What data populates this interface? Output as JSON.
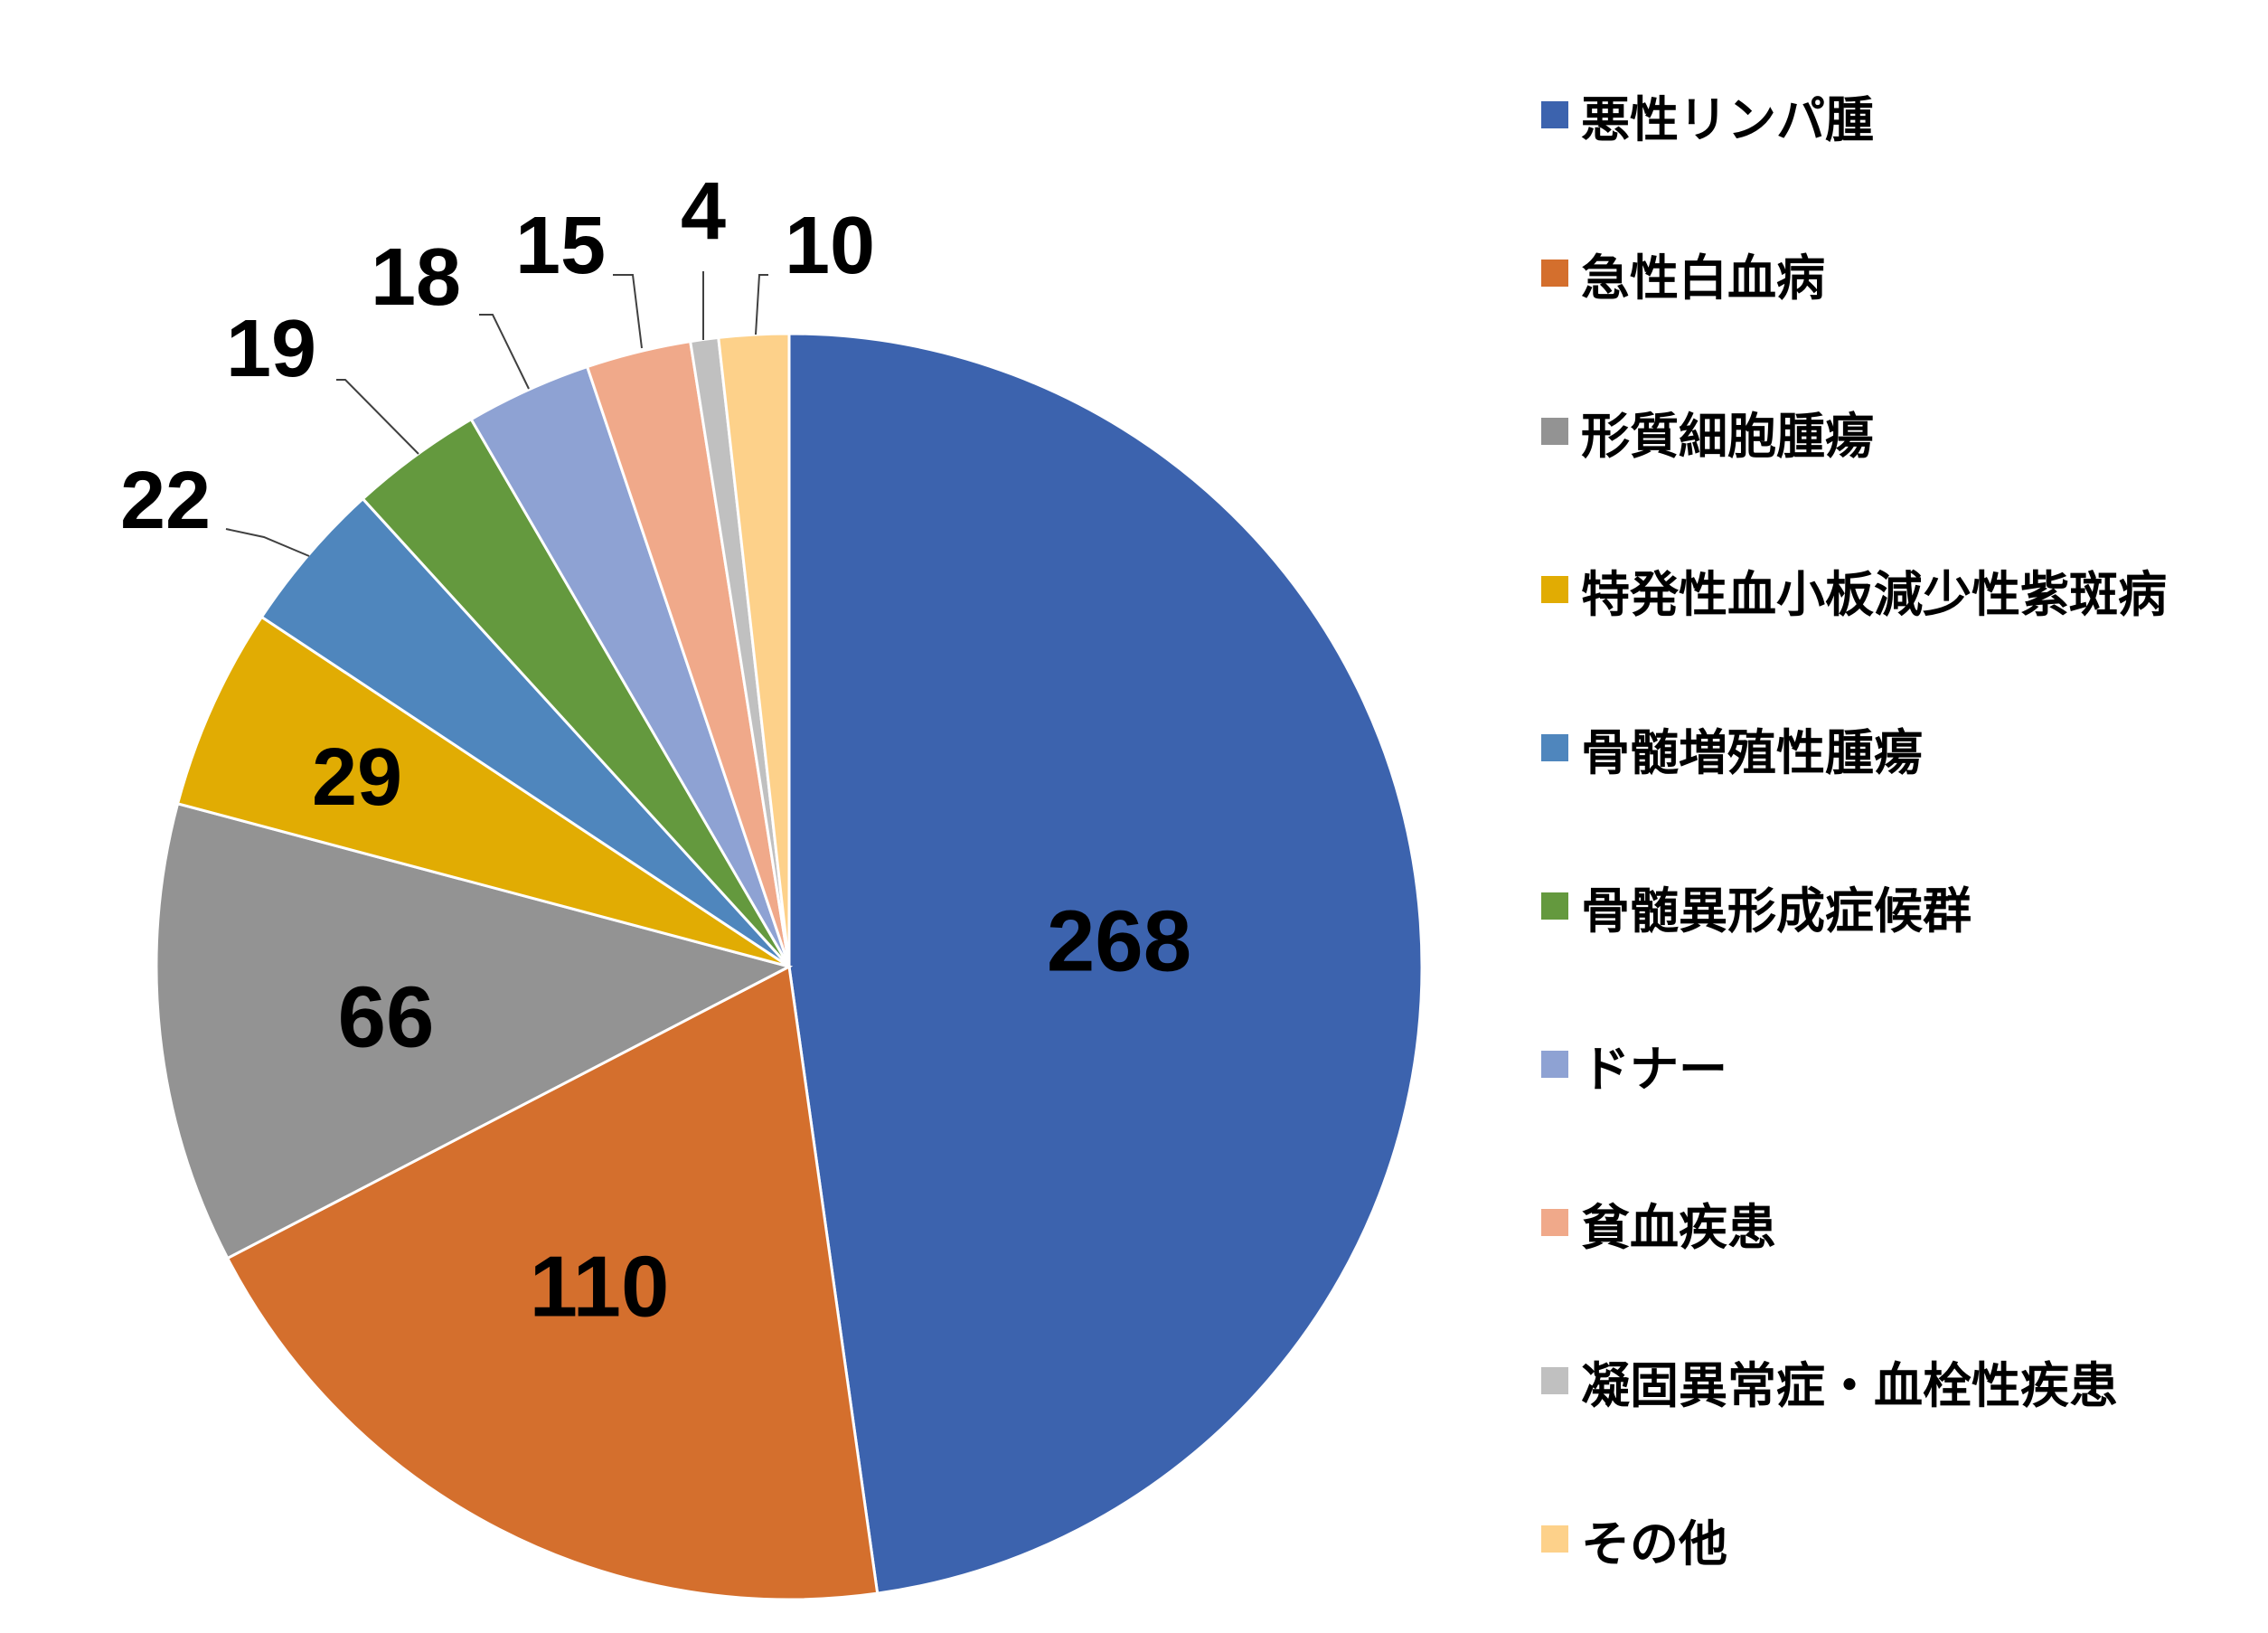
{
  "chart_data": {
    "type": "pie",
    "start_angle": "12 o'clock, clockwise",
    "legend_position": "right",
    "slices": [
      {
        "label": "悪性リンパ腫",
        "value": 268,
        "color": "#3C63AE"
      },
      {
        "label": "急性白血病",
        "value": 110,
        "color": "#D46F2D"
      },
      {
        "label": "形質細胞腫瘍",
        "value": 66,
        "color": "#939393"
      },
      {
        "label": "特発性血小板減少性紫斑病",
        "value": 29,
        "color": "#E1AC03"
      },
      {
        "label": "骨髄増殖性腫瘍",
        "value": 22,
        "color": "#4F86BD"
      },
      {
        "label": "骨髄異形成症候群",
        "value": 19,
        "color": "#64993E"
      },
      {
        "label": "ドナー",
        "value": 18,
        "color": "#8EA2D3"
      },
      {
        "label": "貧血疾患",
        "value": 15,
        "color": "#F0A98A"
      },
      {
        "label": "凝固異常症・血栓性疾患",
        "value": 4,
        "color": "#C0C0C0"
      },
      {
        "label": "その他",
        "value": 10,
        "color": "#FDD18A"
      }
    ]
  }
}
